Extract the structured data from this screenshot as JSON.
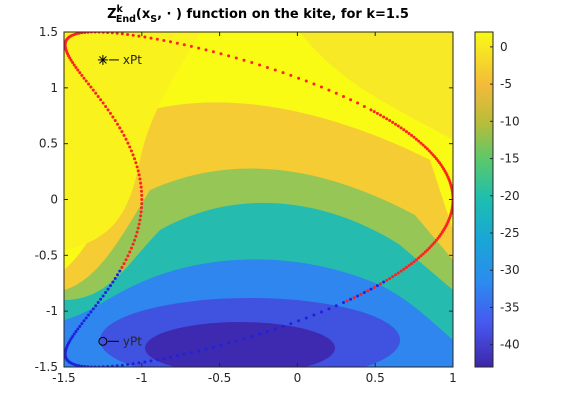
{
  "chart_data": {
    "type": "heatmap",
    "title": {
      "prefix": "Z",
      "superscript": "k",
      "subscript": "End",
      "argument_open": "(x",
      "argument_subscript": "S",
      "argument_rest": ", · ) function on the kite, for k=1.5"
    },
    "xlabel": "",
    "ylabel": "",
    "xlim": [
      -1.5,
      1.0
    ],
    "ylim": [
      -1.5,
      1.5
    ],
    "x_ticks": [
      "-1.5",
      "-1",
      "-0.5",
      "0",
      "0.5",
      "1"
    ],
    "y_ticks": [
      "1.5",
      "1",
      "0.5",
      "0",
      "-0.5",
      "-1",
      "-1.5"
    ],
    "colorbar": {
      "range": [
        -43,
        2
      ],
      "ticks": [
        "0",
        "-5",
        "-10",
        "-15",
        "-20",
        "-25",
        "-30",
        "-35",
        "-40"
      ],
      "colormap": "parula"
    },
    "boundary": {
      "shape": "kite",
      "red_dot_color": "#ff2020",
      "blue_dot_color": "#2020e0"
    },
    "annotations": [
      {
        "label": "xPt",
        "marker": "asterisk",
        "x": -1.25,
        "y": 1.25
      },
      {
        "label": "yPt",
        "marker": "circle",
        "x": -1.25,
        "y": -1.27
      }
    ]
  }
}
